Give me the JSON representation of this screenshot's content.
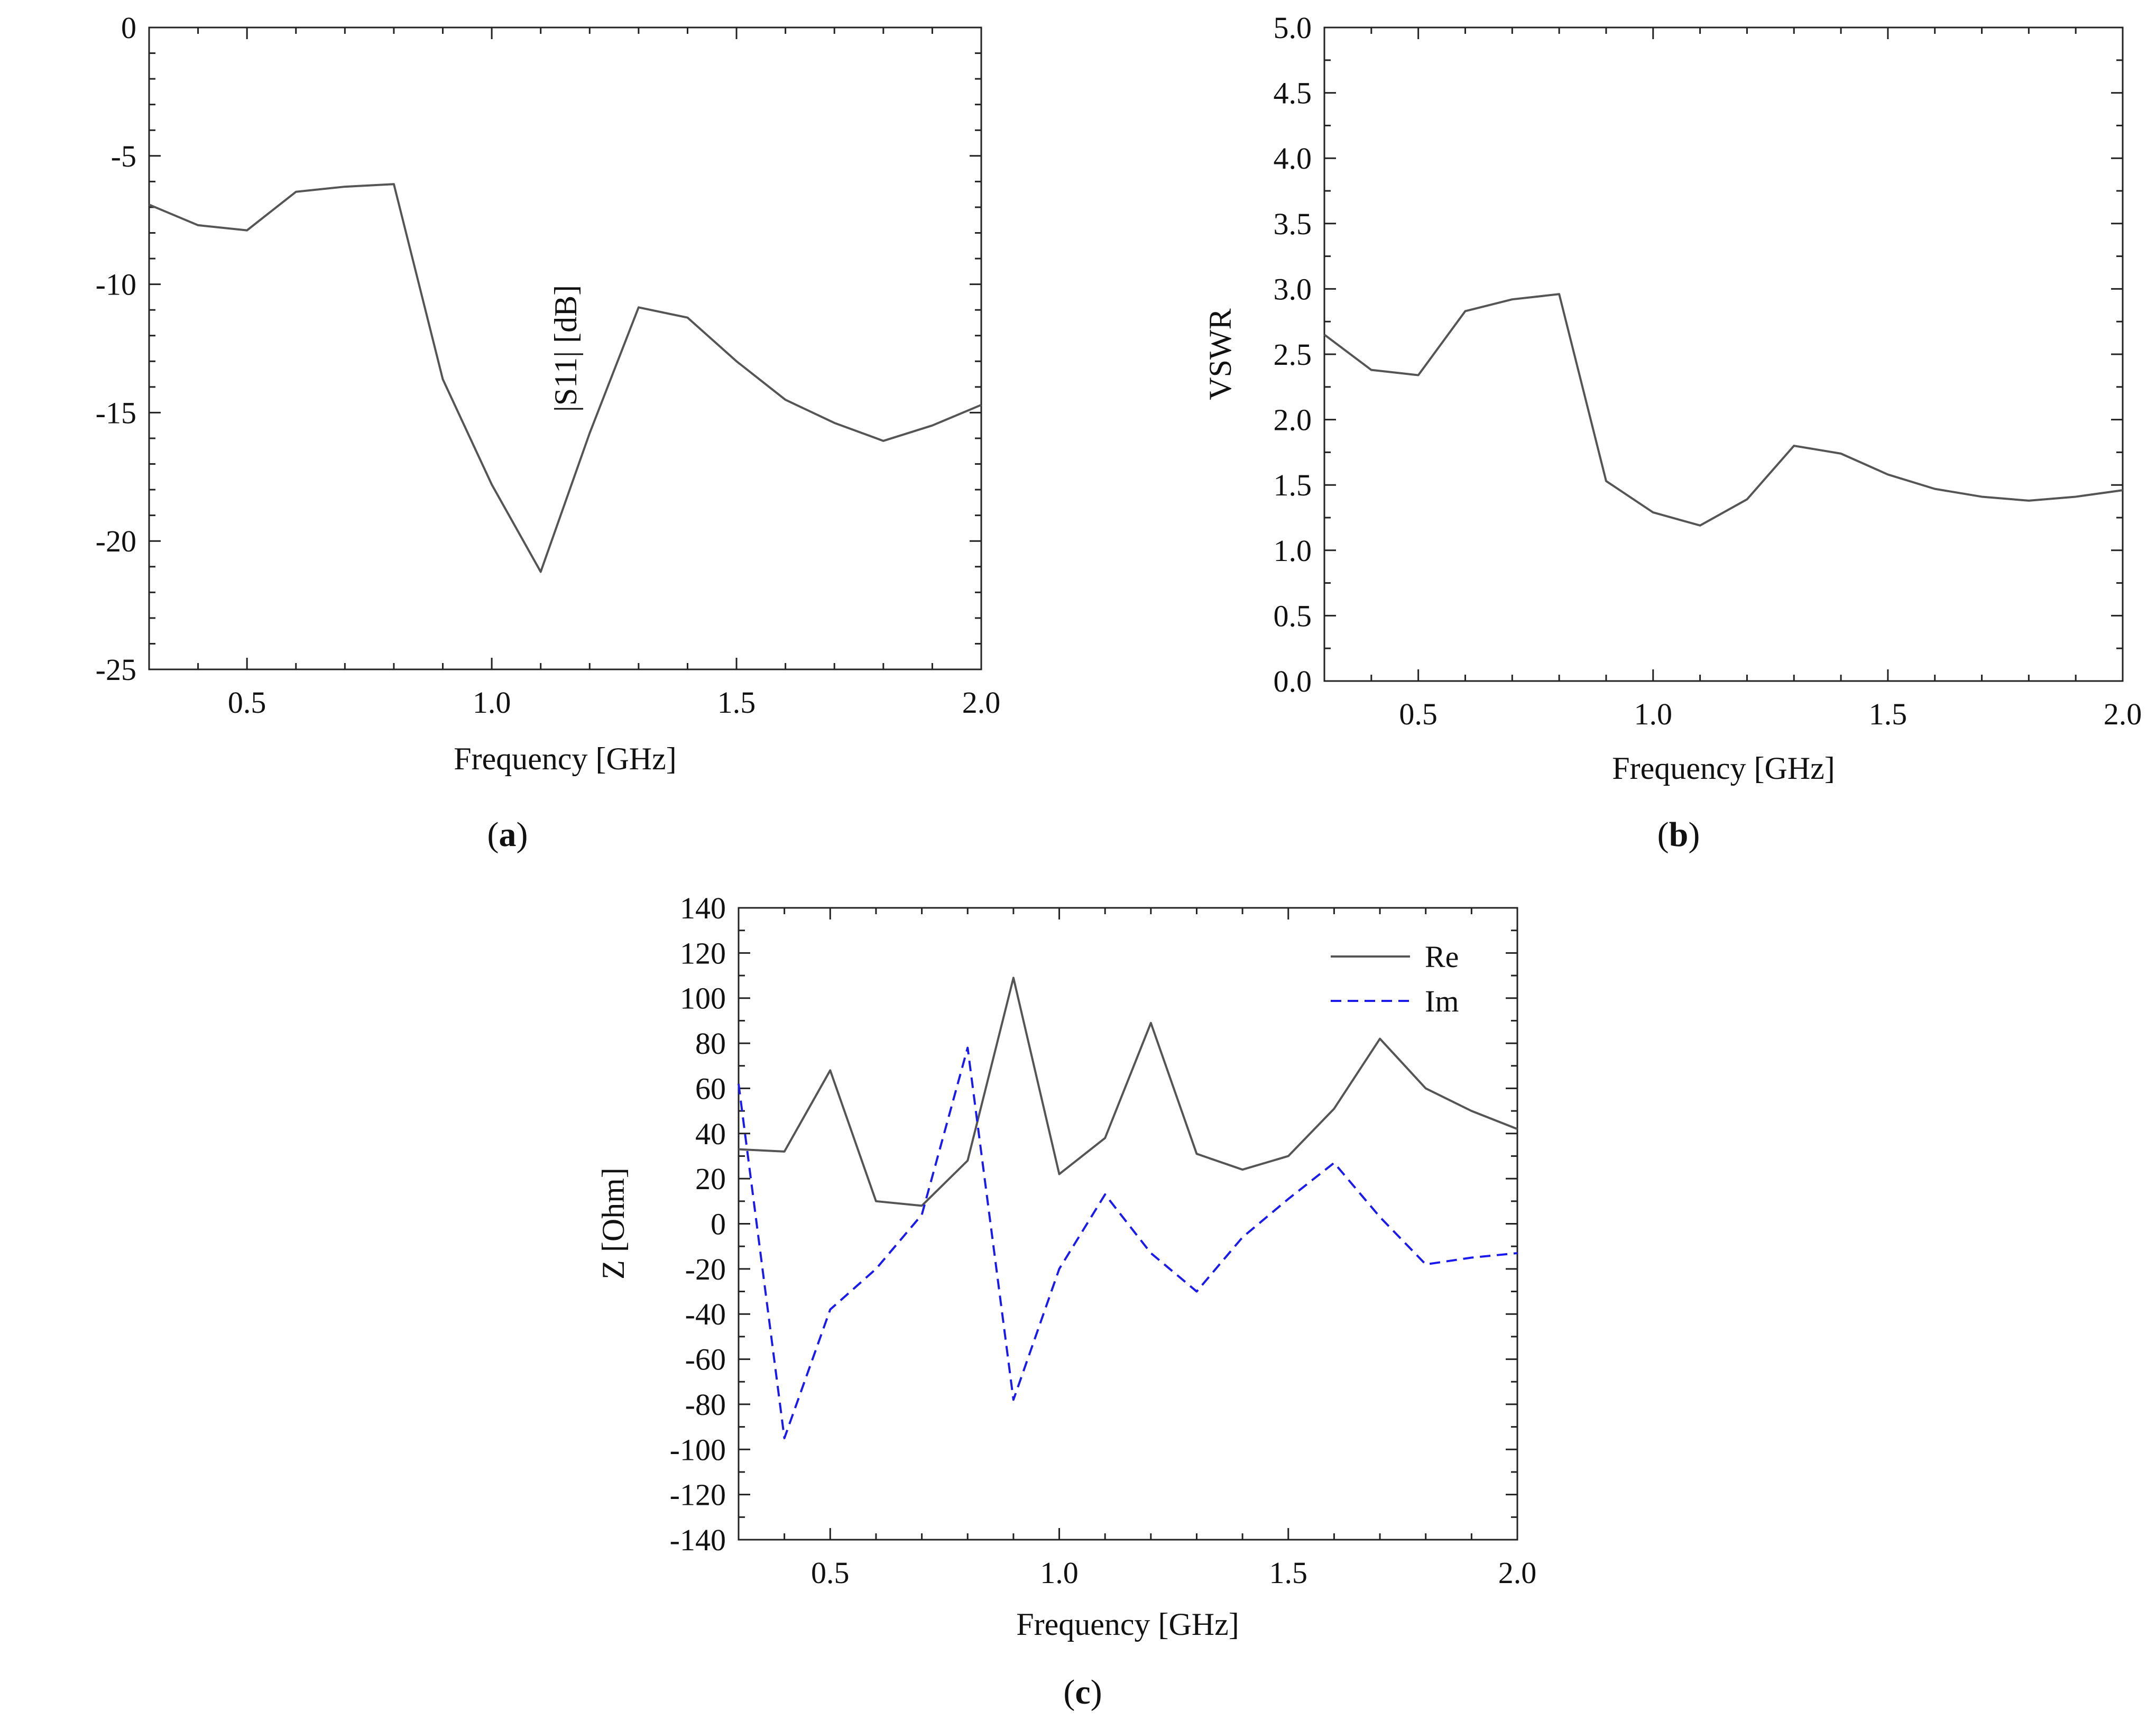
{
  "chart_data": [
    {
      "id": "a",
      "type": "line",
      "panel_label": "(a)",
      "xlabel": "Frequency [GHz]",
      "ylabel": "|S11| [dB]",
      "xlim": [
        0.3,
        2.0
      ],
      "ylim": [
        -25,
        0
      ],
      "xticks": [
        0.5,
        1.0,
        1.5,
        2.0
      ],
      "xtick_labels": [
        "0.5",
        "1.0",
        "1.5",
        "2.0"
      ],
      "yticks": [
        0,
        -5,
        -10,
        -15,
        -20,
        -25
      ],
      "ytick_labels": [
        "0",
        "-5",
        "-10",
        "-15",
        "-20",
        "-25"
      ],
      "series": [
        {
          "name": "|S11|",
          "color": "#555555",
          "dash": "solid",
          "x": [
            0.3,
            0.4,
            0.5,
            0.6,
            0.7,
            0.8,
            0.9,
            1.0,
            1.1,
            1.2,
            1.3,
            1.4,
            1.5,
            1.6,
            1.7,
            1.8,
            1.9,
            2.0
          ],
          "y": [
            -6.9,
            -7.7,
            -7.9,
            -6.4,
            -6.2,
            -6.1,
            -13.7,
            -17.8,
            -21.2,
            -15.8,
            -10.9,
            -11.3,
            -13.0,
            -14.5,
            -15.4,
            -16.1,
            -15.5,
            -14.7
          ]
        }
      ]
    },
    {
      "id": "b",
      "type": "line",
      "panel_label": "(b)",
      "xlabel": "Frequency [GHz]",
      "ylabel": "VSWR",
      "xlim": [
        0.3,
        2.0
      ],
      "ylim": [
        0,
        5
      ],
      "xticks": [
        0.5,
        1.0,
        1.5,
        2.0
      ],
      "xtick_labels": [
        "0.5",
        "1.0",
        "1.5",
        "2.0"
      ],
      "yticks": [
        0,
        0.5,
        1.0,
        1.5,
        2.0,
        2.5,
        3.0,
        3.5,
        4.0,
        4.5,
        5.0
      ],
      "ytick_labels": [
        "0.0",
        "0.5",
        "1.0",
        "1.5",
        "2.0",
        "2.5",
        "3.0",
        "3.5",
        "4.0",
        "4.5",
        "5.0"
      ],
      "series": [
        {
          "name": "VSWR",
          "color": "#555555",
          "dash": "solid",
          "x": [
            0.3,
            0.4,
            0.5,
            0.6,
            0.7,
            0.8,
            0.9,
            1.0,
            1.1,
            1.2,
            1.3,
            1.4,
            1.5,
            1.6,
            1.7,
            1.8,
            1.9,
            2.0
          ],
          "y": [
            2.65,
            2.38,
            2.34,
            2.83,
            2.92,
            2.96,
            1.53,
            1.29,
            1.19,
            1.39,
            1.8,
            1.74,
            1.58,
            1.47,
            1.41,
            1.38,
            1.41,
            1.46
          ]
        }
      ]
    },
    {
      "id": "c",
      "type": "line",
      "panel_label": "(c)",
      "xlabel": "Frequency [GHz]",
      "ylabel": "Z [Ohm]",
      "xlim": [
        0.3,
        2.0
      ],
      "ylim": [
        -140,
        140
      ],
      "xticks": [
        0.5,
        1.0,
        1.5,
        2.0
      ],
      "xtick_labels": [
        "0.5",
        "1.0",
        "1.5",
        "2.0"
      ],
      "yticks": [
        140,
        120,
        100,
        80,
        60,
        40,
        20,
        0,
        -20,
        -40,
        -60,
        -80,
        -100,
        -120,
        -140
      ],
      "ytick_labels": [
        "140",
        "120",
        "100",
        "80",
        "60",
        "40",
        "20",
        "0",
        "-20",
        "-40",
        "-60",
        "-80",
        "-100",
        "-120",
        "-140"
      ],
      "legend": {
        "position": "top-right",
        "entries": [
          "Re",
          "Im"
        ]
      },
      "series": [
        {
          "name": "Re",
          "color": "#555555",
          "dash": "solid",
          "x": [
            0.3,
            0.4,
            0.5,
            0.6,
            0.7,
            0.8,
            0.9,
            1.0,
            1.1,
            1.2,
            1.3,
            1.4,
            1.5,
            1.6,
            1.7,
            1.8,
            1.9,
            2.0
          ],
          "y": [
            33,
            32,
            68,
            10,
            8,
            28,
            109,
            22,
            38,
            89,
            31,
            24,
            30,
            51,
            82,
            60,
            50,
            42
          ]
        },
        {
          "name": "Im",
          "color": "#1a1aee",
          "dash": "dashed",
          "x": [
            0.3,
            0.4,
            0.5,
            0.6,
            0.7,
            0.8,
            0.9,
            1.0,
            1.1,
            1.2,
            1.3,
            1.4,
            1.5,
            1.6,
            1.7,
            1.8,
            1.9,
            2.0
          ],
          "y": [
            62,
            -95,
            -38,
            -20,
            4,
            78,
            -78,
            -20,
            13,
            -13,
            -30,
            -6,
            11,
            27,
            3,
            -18,
            -15,
            -13
          ]
        }
      ]
    }
  ]
}
